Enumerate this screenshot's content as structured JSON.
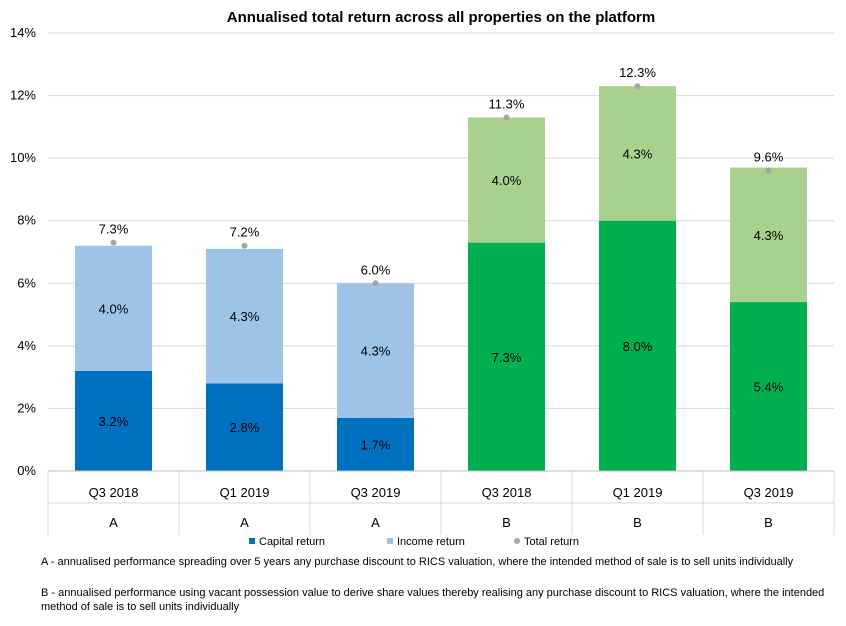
{
  "chart_data": {
    "type": "bar",
    "stacked": true,
    "title": "Annualised total return across all properties on the platform",
    "xlabel": "",
    "ylabel": "",
    "ylim": [
      0,
      14
    ],
    "yticks": [
      0,
      2,
      4,
      6,
      8,
      10,
      12,
      14
    ],
    "ytick_format": "%",
    "grid": true,
    "categories": [
      "Q3 2018",
      "Q1 2019",
      "Q3 2019",
      "Q3 2018",
      "Q1 2019",
      "Q3 2019"
    ],
    "groups": [
      "A",
      "A",
      "A",
      "B",
      "B",
      "B"
    ],
    "series": [
      {
        "name": "Capital return",
        "values": [
          3.2,
          2.8,
          1.7,
          7.3,
          8.0,
          5.4
        ],
        "labels": [
          "3.2%",
          "2.8%",
          "1.7%",
          "7.3%",
          "8.0%",
          "5.4%"
        ],
        "colors": [
          "#0070C0",
          "#0070C0",
          "#0070C0",
          "#00B050",
          "#00B050",
          "#00B050"
        ]
      },
      {
        "name": "Income return",
        "values": [
          4.0,
          4.3,
          4.3,
          4.0,
          4.3,
          4.3
        ],
        "labels": [
          "4.0%",
          "4.3%",
          "4.3%",
          "4.0%",
          "4.3%",
          "4.3%"
        ],
        "colors": [
          "#9DC3E6",
          "#9DC3E6",
          "#9DC3E6",
          "#A9D18E",
          "#A9D18E",
          "#A9D18E"
        ]
      },
      {
        "name": "Total return",
        "type": "scatter",
        "values": [
          7.3,
          7.2,
          6.0,
          11.3,
          12.3,
          9.6
        ],
        "labels": [
          "7.3%",
          "7.2%",
          "6.0%",
          "11.3%",
          "12.3%",
          "9.6%"
        ],
        "color": "#A6A6A6"
      }
    ],
    "legend": {
      "placement": "bottom",
      "entries": [
        "Capital return",
        "Income return",
        "Total return"
      ],
      "colors": [
        "#0070C0",
        "#9DC3E6",
        "#A6A6A6"
      ]
    },
    "footnotes": [
      "A - annualised performance spreading over 5 years any purchase discount to RICS valuation, where the intended method of sale is to sell units individually",
      "B - annualised performance using vacant possession value to derive share values thereby realising any purchase discount to RICS valuation, where the intended method of sale is to sell units individually"
    ]
  }
}
